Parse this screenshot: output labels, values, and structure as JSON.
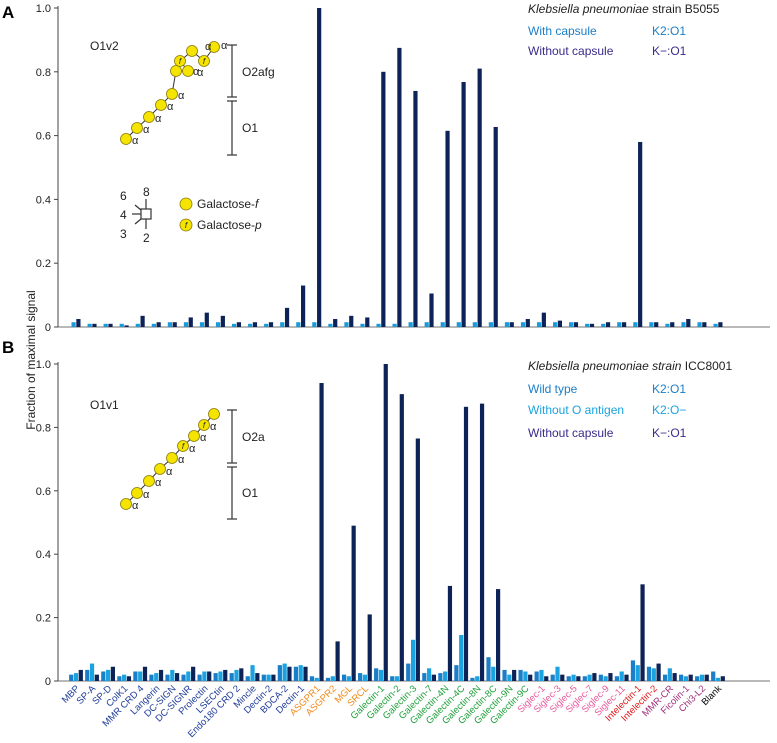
{
  "figure": {
    "ylabel": "Fraction of maximal signal",
    "yticks": [
      "0",
      "0.2",
      "0.4",
      "0.6",
      "0.8",
      "1.0"
    ],
    "colors": {
      "dark": "#0d2357",
      "mid": "#1a7ec8",
      "light": "#1aa3e0",
      "axis": "#444444",
      "galactose": "#f5e400"
    }
  },
  "panelA": {
    "label": "A",
    "legend": {
      "title_italic": "Klebsiella pneumoniae",
      "title_rest": " strain B5055",
      "entries": [
        {
          "name": "With capsule",
          "code": "K2:O1",
          "color": "#1a7ec8"
        },
        {
          "name": "Without capsule",
          "code": "K−:O1",
          "color": "#3b2a8a"
        }
      ]
    },
    "glycan": {
      "name": "O1v2",
      "alpha": "α",
      "f": "f",
      "segments": [
        {
          "label": "O2afg"
        },
        {
          "label": "O1"
        }
      ],
      "key": {
        "positions": [
          "6",
          "8",
          "4",
          "3",
          "2"
        ],
        "items": [
          {
            "symbol": "circle",
            "text": "Galactose-",
            "suffix": "f"
          },
          {
            "symbol": "circle-f",
            "text": "Galactose-",
            "suffix": "p"
          }
        ]
      }
    }
  },
  "panelB": {
    "label": "B",
    "legend": {
      "title_italic": "Klebsiella pneumoniae strain",
      "title_rest": " ICC8001",
      "entries": [
        {
          "name": "Wild type",
          "code": "K2:O1",
          "color": "#1a7ec8"
        },
        {
          "name": "Without O antigen",
          "code": "K2:O−",
          "color": "#1aa3e0"
        },
        {
          "name": "Without capsule",
          "code": "K−:O1",
          "color": "#3b2a8a"
        }
      ]
    },
    "glycan": {
      "name": "O1v1",
      "alpha": "α",
      "f": "f",
      "segments": [
        {
          "label": "O2a"
        },
        {
          "label": "O1"
        }
      ]
    }
  },
  "chart_data": [
    {
      "type": "bar",
      "panel": "A",
      "ylabel": "Fraction of maximal signal",
      "ylim": [
        0,
        1.0
      ],
      "categories": [
        "MBP",
        "SP-A",
        "SP-D",
        "ColK1",
        "MMR CRD 4",
        "Langerin",
        "DC-SIGN",
        "DC-SIGNR",
        "Prolectin",
        "LSECtin",
        "Endo180 CRD 2",
        "Mincle",
        "Dectin-2",
        "BDCA-2",
        "Dectin-1",
        "ASGPR1",
        "ASGPR2",
        "MGL",
        "SRCL",
        "Galectin-1",
        "Galectin-2",
        "Galectin-3",
        "Galectin-7",
        "Galectin-4N",
        "Galectin-4C",
        "Galectin-8N",
        "Galectin-8C",
        "Galectin-9N",
        "Galectin-9C",
        "Siglec-1",
        "Siglec-3",
        "Siglec-5",
        "Siglec-7",
        "Siglec-9",
        "Siglec-11",
        "Intelectin-1",
        "Intelectin-2",
        "MMR-CR",
        "Ficolin-1",
        "Chi3-L2",
        "Blank"
      ],
      "series": [
        {
          "name": "With capsule",
          "values": [
            0.015,
            0.01,
            0.01,
            0.01,
            0.01,
            0.01,
            0.015,
            0.015,
            0.015,
            0.015,
            0.01,
            0.01,
            0.01,
            0.015,
            0.015,
            0.015,
            0.01,
            0.015,
            0.01,
            0.01,
            0.01,
            0.015,
            0.015,
            0.015,
            0.015,
            0.015,
            0.015,
            0.015,
            0.015,
            0.015,
            0.015,
            0.015,
            0.01,
            0.01,
            0.015,
            0.015,
            0.015,
            0.01,
            0.015,
            0.015,
            0.01
          ]
        },
        {
          "name": "Without capsule",
          "values": [
            0.025,
            0.01,
            0.01,
            0.005,
            0.035,
            0.015,
            0.015,
            0.03,
            0.045,
            0.035,
            0.015,
            0.015,
            0.015,
            0.06,
            0.13,
            1.0,
            0.025,
            0.035,
            0.03,
            0.8,
            0.875,
            0.74,
            0.105,
            0.615,
            0.768,
            0.81,
            0.627,
            0.015,
            0.025,
            0.045,
            0.02,
            0.015,
            0.01,
            0.015,
            0.015,
            0.58,
            0.015,
            0.015,
            0.025,
            0.015,
            0.015
          ]
        }
      ]
    },
    {
      "type": "bar",
      "panel": "B",
      "ylabel": "Fraction of maximal signal",
      "ylim": [
        0,
        1.0
      ],
      "categories": [
        "MBP",
        "SP-A",
        "SP-D",
        "ColK1",
        "MMR CRD 4",
        "Langerin",
        "DC-SIGN",
        "DC-SIGNR",
        "Prolectin",
        "LSECtin",
        "Endo180 CRD 2",
        "Mincle",
        "Dectin-2",
        "BDCA-2",
        "Dectin-1",
        "ASGPR1",
        "ASGPR2",
        "MGL",
        "SRCL",
        "Galectin-1",
        "Galectin-2",
        "Galectin-3",
        "Galectin-7",
        "Galectin-4N",
        "Galectin-4C",
        "Galectin-8N",
        "Galectin-8C",
        "Galectin-9N",
        "Galectin-9C",
        "Siglec-1",
        "Siglec-3",
        "Siglec-5",
        "Siglec-7",
        "Siglec-9",
        "Siglec-11",
        "Intelectin-1",
        "Intelectin-2",
        "MMR-CR",
        "Ficolin-1",
        "Chi3-L2",
        "Blank"
      ],
      "series": [
        {
          "name": "Wild type",
          "values": [
            0.02,
            0.035,
            0.03,
            0.015,
            0.03,
            0.02,
            0.02,
            0.02,
            0.02,
            0.025,
            0.025,
            0.015,
            0.02,
            0.05,
            0.045,
            0.015,
            0.01,
            0.02,
            0.025,
            0.04,
            0.015,
            0.055,
            0.025,
            0.025,
            0.05,
            0.01,
            0.075,
            0.035,
            0.035,
            0.03,
            0.02,
            0.015,
            0.015,
            0.02,
            0.015,
            0.065,
            0.045,
            0.02,
            0.02,
            0.015,
            0.03
          ]
        },
        {
          "name": "Without O antigen",
          "values": [
            0.025,
            0.055,
            0.035,
            0.02,
            0.03,
            0.025,
            0.035,
            0.03,
            0.03,
            0.03,
            0.035,
            0.05,
            0.02,
            0.055,
            0.05,
            0.01,
            0.015,
            0.015,
            0.02,
            0.035,
            0.015,
            0.13,
            0.04,
            0.03,
            0.145,
            0.015,
            0.045,
            0.02,
            0.03,
            0.035,
            0.045,
            0.02,
            0.02,
            0.015,
            0.03,
            0.05,
            0.04,
            0.04,
            0.015,
            0.02,
            0.01
          ]
        },
        {
          "name": "Without capsule",
          "values": [
            0.035,
            0.02,
            0.045,
            0.015,
            0.045,
            0.035,
            0.025,
            0.045,
            0.03,
            0.035,
            0.04,
            0.025,
            0.02,
            0.045,
            0.045,
            0.94,
            0.125,
            0.49,
            0.21,
            1.0,
            0.905,
            0.765,
            0.02,
            0.3,
            0.865,
            0.875,
            0.29,
            0.035,
            0.02,
            0.015,
            0.02,
            0.015,
            0.025,
            0.025,
            0.02,
            0.305,
            0.055,
            0.025,
            0.02,
            0.02,
            0.015
          ]
        }
      ]
    }
  ],
  "category_colors": [
    "#1f3c9a",
    "#1f3c9a",
    "#1f3c9a",
    "#1f3c9a",
    "#1f3c9a",
    "#1f3c9a",
    "#1f3c9a",
    "#1f3c9a",
    "#1f3c9a",
    "#1f3c9a",
    "#1f3c9a",
    "#1f3c9a",
    "#1f3c9a",
    "#1f3c9a",
    "#1f3c9a",
    "#f08a1c",
    "#f08a1c",
    "#f08a1c",
    "#f08a1c",
    "#1fa03a",
    "#1fa03a",
    "#1fa03a",
    "#1fa03a",
    "#1fa03a",
    "#1fa03a",
    "#1fa03a",
    "#1fa03a",
    "#1fa03a",
    "#1fa03a",
    "#e8589a",
    "#e8589a",
    "#e8589a",
    "#e8589a",
    "#e8589a",
    "#e8589a",
    "#e01818",
    "#e01818",
    "#a0307a",
    "#a0307a",
    "#a0307a",
    "#000000"
  ]
}
